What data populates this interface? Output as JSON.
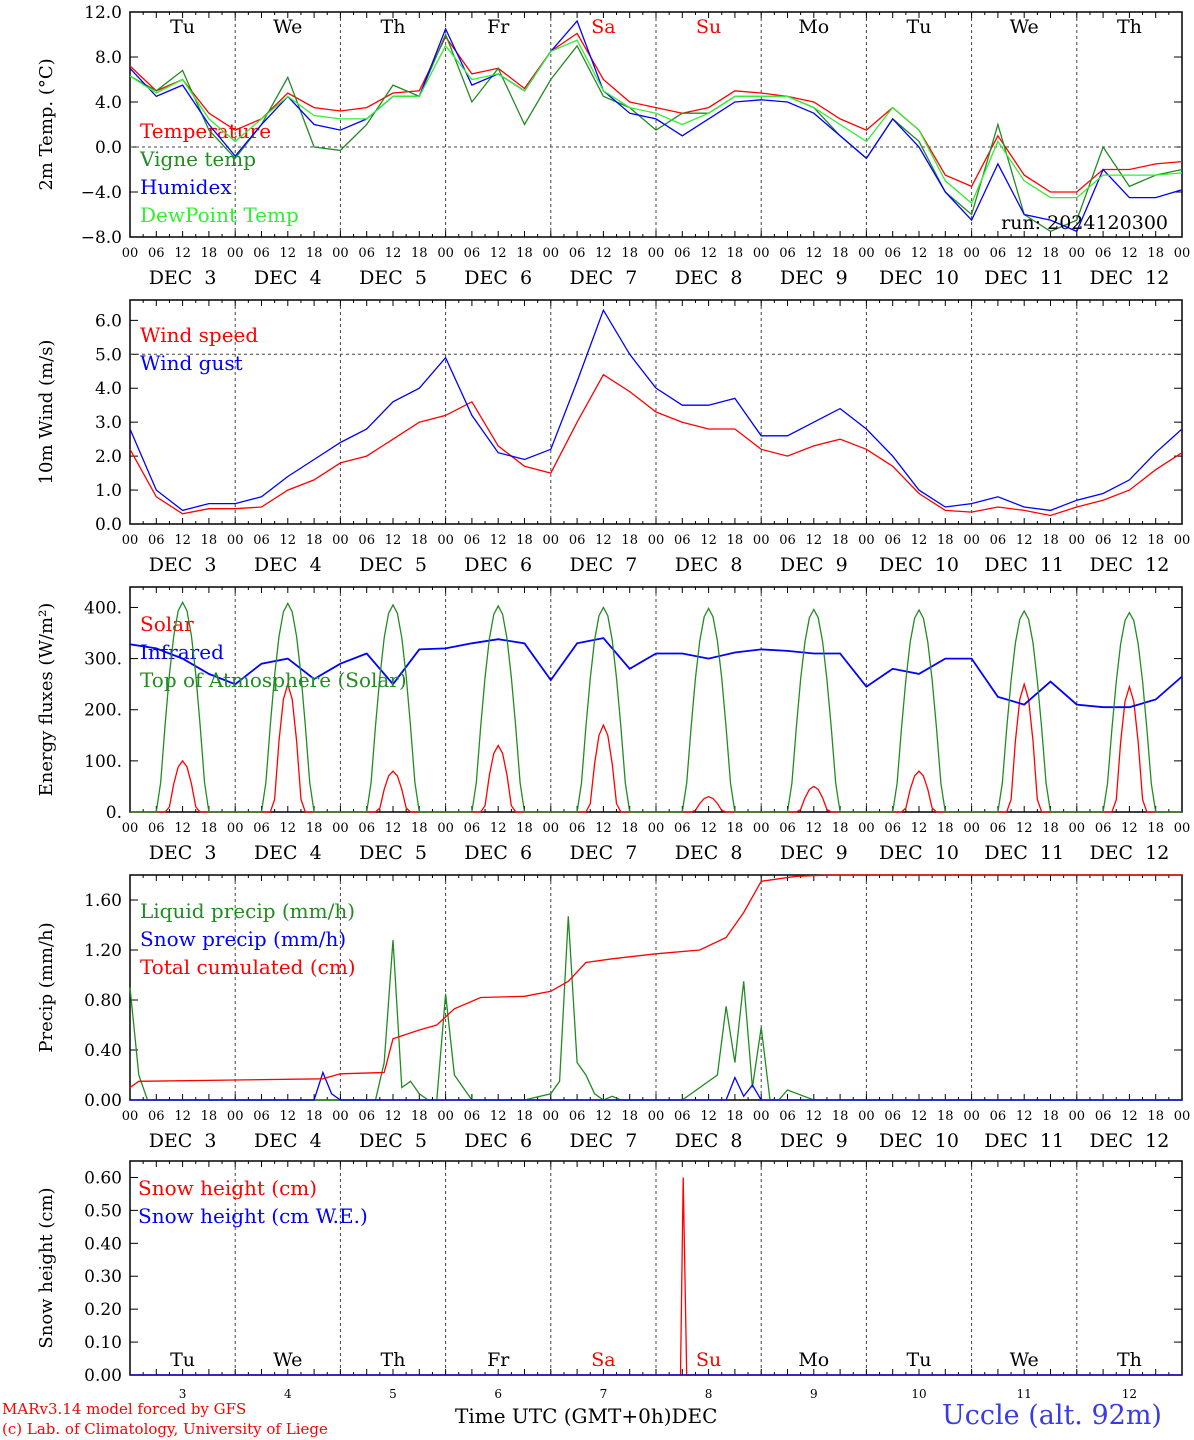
{
  "days": {
    "weekdays": [
      "Tu",
      "We",
      "Th",
      "Fr",
      "Sa",
      "Su",
      "Mo",
      "Tu",
      "We",
      "Th"
    ],
    "weekend_color": "#ff0000",
    "dates": [
      "DEC  3",
      "DEC  4",
      "DEC  5",
      "DEC  6",
      "DEC  7",
      "DEC  8",
      "DEC  9",
      "DEC 10",
      "DEC 11",
      "DEC 12"
    ],
    "day_numbers": [
      "3",
      "4",
      "5",
      "6",
      "7",
      "8",
      "9",
      "10",
      "11",
      "12"
    ],
    "hour_ticks": [
      "00",
      "06",
      "12",
      "18"
    ],
    "final_tick": "00"
  },
  "footer": {
    "model": "MARv3.14 model forced by GFS",
    "copyright": "(c) Lab. of Climatology, University of Liege",
    "time_label": "Time UTC (GMT+0h)",
    "month": "DEC",
    "station": "Uccle (alt. 92m)"
  },
  "chart_data": [
    {
      "type": "line",
      "ylabel": "2m Temp. (°C)",
      "ylim": [
        -8,
        12
      ],
      "yticks": [
        "12.0",
        "8.0",
        "4.0",
        "0.0",
        "−4.0",
        "−8.0"
      ],
      "zero_line": 0,
      "run_label": "run: 2024120300",
      "x_unit": "hours since Dec 3 00 UTC",
      "series": [
        {
          "name": "Temperature",
          "color": "#ff0000",
          "x": [
            0,
            6,
            12,
            18,
            24,
            30,
            36,
            42,
            48,
            54,
            60,
            66,
            72,
            78,
            84,
            90,
            96,
            102,
            108,
            114,
            120,
            126,
            132,
            138,
            144,
            150,
            156,
            162,
            168,
            174,
            180,
            186,
            192,
            198,
            204,
            210,
            216,
            222,
            228,
            234,
            240
          ],
          "y": [
            7.2,
            5.0,
            6.0,
            3.0,
            1.5,
            2.5,
            4.8,
            3.5,
            3.2,
            3.5,
            4.8,
            5.0,
            9.8,
            6.5,
            7.0,
            5.2,
            8.5,
            10.1,
            6.0,
            4.0,
            3.5,
            3.0,
            3.5,
            5.0,
            4.8,
            4.5,
            4.0,
            2.5,
            1.5,
            3.5,
            1.5,
            -2.5,
            -3.5,
            1.0,
            -2.5,
            -4.0,
            -4.0,
            -2.0,
            -2.0,
            -1.5,
            -1.3
          ]
        },
        {
          "name": "Vigne temp",
          "color": "#228b22",
          "x": [
            0,
            6,
            12,
            18,
            24,
            30,
            36,
            42,
            48,
            54,
            60,
            66,
            72,
            78,
            84,
            90,
            96,
            102,
            108,
            114,
            120,
            126,
            132,
            138,
            144,
            150,
            156,
            162,
            168,
            174,
            180,
            186,
            192,
            198,
            204,
            210,
            216,
            222,
            228,
            234,
            240
          ],
          "y": [
            6.3,
            5.0,
            6.8,
            1.5,
            -1.0,
            2.0,
            6.2,
            0.0,
            -0.3,
            2.0,
            5.5,
            4.5,
            10.0,
            4.0,
            7.0,
            2.0,
            6.0,
            9.0,
            4.5,
            3.5,
            1.5,
            3.0,
            3.0,
            4.5,
            4.5,
            4.5,
            3.5,
            1.0,
            -1.0,
            2.5,
            0.5,
            -4.0,
            -6.0,
            2.0,
            -6.0,
            -7.5,
            -6.5,
            0.0,
            -3.5,
            -2.5,
            -2.0
          ]
        },
        {
          "name": "Humidex",
          "color": "#0000ff",
          "x": [
            0,
            6,
            12,
            18,
            24,
            30,
            36,
            42,
            48,
            54,
            60,
            66,
            72,
            78,
            84,
            90,
            96,
            102,
            108,
            114,
            120,
            126,
            132,
            138,
            144,
            150,
            156,
            162,
            168,
            174,
            180,
            186,
            192,
            198,
            204,
            210,
            216,
            222,
            228,
            234,
            240
          ],
          "y": [
            7.0,
            4.5,
            5.5,
            2.0,
            -0.8,
            2.0,
            4.5,
            2.0,
            1.5,
            2.5,
            4.5,
            4.5,
            10.5,
            5.5,
            6.5,
            5.0,
            8.5,
            11.2,
            5.0,
            3.0,
            2.5,
            1.0,
            2.5,
            4.0,
            4.2,
            4.0,
            3.0,
            1.0,
            -1.0,
            2.5,
            0.0,
            -4.0,
            -6.5,
            -1.5,
            -6.0,
            -6.5,
            -7.5,
            -2.0,
            -4.5,
            -4.5,
            -3.8
          ]
        },
        {
          "name": "DewPoint Temp",
          "color": "#33ee33",
          "x": [
            0,
            6,
            12,
            18,
            24,
            30,
            36,
            42,
            48,
            54,
            60,
            66,
            72,
            78,
            84,
            90,
            96,
            102,
            108,
            114,
            120,
            126,
            132,
            138,
            144,
            150,
            156,
            162,
            168,
            174,
            180,
            186,
            192,
            198,
            204,
            210,
            216,
            222,
            228,
            234,
            240
          ],
          "y": [
            6.3,
            4.8,
            6.0,
            2.5,
            0.5,
            2.5,
            4.5,
            2.8,
            2.5,
            2.5,
            4.5,
            4.5,
            9.0,
            6.0,
            6.5,
            5.0,
            8.5,
            9.5,
            5.0,
            3.5,
            3.0,
            2.0,
            3.0,
            4.5,
            4.5,
            4.5,
            3.5,
            2.0,
            0.5,
            3.5,
            1.5,
            -3.0,
            -5.0,
            0.5,
            -3.0,
            -4.5,
            -4.5,
            -2.5,
            -2.5,
            -2.5,
            -2.3
          ]
        }
      ]
    },
    {
      "type": "line",
      "ylabel": "10m Wind (m/s)",
      "ylim": [
        0,
        6.6
      ],
      "yticks": [
        "6.0",
        "5.0",
        "4.0",
        "3.0",
        "2.0",
        "1.0",
        "0.0"
      ],
      "ref_line": 5,
      "x_unit": "hours since Dec 3 00 UTC",
      "series": [
        {
          "name": "Wind speed",
          "color": "#ff0000",
          "x": [
            0,
            6,
            12,
            18,
            24,
            30,
            36,
            42,
            48,
            54,
            60,
            66,
            72,
            78,
            84,
            90,
            96,
            102,
            108,
            114,
            120,
            126,
            132,
            138,
            144,
            150,
            156,
            162,
            168,
            174,
            180,
            186,
            192,
            198,
            204,
            210,
            216,
            222,
            228,
            234,
            240
          ],
          "y": [
            2.2,
            0.8,
            0.3,
            0.45,
            0.45,
            0.5,
            1.0,
            1.3,
            1.8,
            2.0,
            2.5,
            3.0,
            3.2,
            3.6,
            2.3,
            1.7,
            1.5,
            3.0,
            4.4,
            3.9,
            3.3,
            3.0,
            2.8,
            2.8,
            2.2,
            2.0,
            2.3,
            2.5,
            2.2,
            1.7,
            0.9,
            0.4,
            0.35,
            0.5,
            0.4,
            0.25,
            0.5,
            0.7,
            1.0,
            1.6,
            2.1
          ]
        },
        {
          "name": "Wind gust",
          "color": "#0000ff",
          "x": [
            0,
            6,
            12,
            18,
            24,
            30,
            36,
            42,
            48,
            54,
            60,
            66,
            72,
            78,
            84,
            90,
            96,
            102,
            108,
            114,
            120,
            126,
            132,
            138,
            144,
            150,
            156,
            162,
            168,
            174,
            180,
            186,
            192,
            198,
            204,
            210,
            216,
            222,
            228,
            234,
            240
          ],
          "y": [
            2.8,
            1.0,
            0.4,
            0.6,
            0.6,
            0.8,
            1.4,
            1.9,
            2.4,
            2.8,
            3.6,
            4.0,
            4.9,
            3.2,
            2.1,
            1.9,
            2.2,
            4.2,
            6.3,
            5.0,
            4.0,
            3.5,
            3.5,
            3.7,
            2.6,
            2.6,
            3.0,
            3.4,
            2.8,
            2.0,
            1.0,
            0.5,
            0.6,
            0.8,
            0.5,
            0.4,
            0.7,
            0.9,
            1.3,
            2.1,
            2.8
          ]
        }
      ]
    },
    {
      "type": "line",
      "ylabel": "Energy fluxes (W/m²)",
      "ylim": [
        0,
        440
      ],
      "yticks": [
        "400.",
        "300.",
        "200.",
        "100.",
        "0."
      ],
      "x_unit": "hours since Dec 3 00 UTC",
      "series": [
        {
          "name": "Solar",
          "color": "#ff0000",
          "peaks_y": [
            100,
            250,
            80,
            130,
            170,
            30,
            50,
            80,
            250,
            245
          ]
        },
        {
          "name": "Infrared",
          "color": "#0000ff",
          "x": [
            0,
            6,
            12,
            18,
            24,
            30,
            36,
            42,
            48,
            54,
            60,
            66,
            72,
            78,
            84,
            90,
            96,
            102,
            108,
            114,
            120,
            126,
            132,
            138,
            144,
            150,
            156,
            162,
            168,
            174,
            180,
            186,
            192,
            198,
            204,
            210,
            216,
            222,
            228,
            234,
            240
          ],
          "y": [
            328,
            320,
            300,
            270,
            250,
            290,
            300,
            260,
            290,
            310,
            250,
            318,
            320,
            330,
            338,
            330,
            258,
            330,
            340,
            280,
            310,
            310,
            300,
            312,
            318,
            315,
            310,
            310,
            245,
            280,
            270,
            300,
            300,
            225,
            210,
            255,
            210,
            205,
            205,
            220,
            265
          ]
        },
        {
          "name": "Top of Atmosphere (Solar)",
          "color": "#228b22",
          "peaks_y": [
            410,
            408,
            405,
            403,
            400,
            398,
            396,
            395,
            393,
            390
          ]
        }
      ]
    },
    {
      "type": "line",
      "ylabel": "Precip (mm/h)",
      "ylim": [
        0,
        1.8
      ],
      "yticks": [
        "1.60",
        "1.20",
        "0.80",
        "0.40",
        "0.00"
      ],
      "x_unit": "hours since Dec 3 00 UTC",
      "series": [
        {
          "name": "Liquid precip (mm/h)",
          "color": "#228b22",
          "x": [
            0,
            2,
            4,
            8,
            56,
            58,
            60,
            62,
            64,
            66,
            68,
            70,
            72,
            74,
            76,
            78,
            80,
            90,
            96,
            98,
            100,
            102,
            104,
            106,
            108,
            110,
            112,
            114,
            120,
            126,
            134,
            136,
            138,
            140,
            142,
            144,
            146,
            148,
            150,
            156,
            160,
            166,
            240
          ],
          "y": [
            0.9,
            0.2,
            0.0,
            0.0,
            0.0,
            0.3,
            1.28,
            0.1,
            0.15,
            0.05,
            0.0,
            0.0,
            0.85,
            0.2,
            0.1,
            0.0,
            0.0,
            0.0,
            0.05,
            0.15,
            1.47,
            0.3,
            0.2,
            0.05,
            0.0,
            0.03,
            0.0,
            0.0,
            0.0,
            0.0,
            0.2,
            0.75,
            0.3,
            0.95,
            0.1,
            0.58,
            0.0,
            0.0,
            0.08,
            0.0,
            0.0,
            0.0,
            0.0
          ]
        },
        {
          "name": "Snow precip (mm/h)",
          "color": "#0000ff",
          "x": [
            0,
            42,
            44,
            46,
            48,
            136,
            138,
            140,
            142,
            144,
            146,
            240
          ],
          "y": [
            0.0,
            0.0,
            0.22,
            0.05,
            0.0,
            0.0,
            0.18,
            0.03,
            0.12,
            0.0,
            0.0,
            0.0
          ]
        },
        {
          "name": "Total cumulated (cm)",
          "color": "#ff0000",
          "x": [
            0,
            2,
            24,
            44,
            48,
            58,
            60,
            66,
            70,
            74,
            80,
            90,
            96,
            100,
            104,
            110,
            120,
            130,
            136,
            140,
            144,
            148,
            152,
            160,
            240
          ],
          "y": [
            0.1,
            0.15,
            0.16,
            0.17,
            0.21,
            0.22,
            0.49,
            0.56,
            0.6,
            0.73,
            0.82,
            0.83,
            0.87,
            0.95,
            1.1,
            1.13,
            1.17,
            1.2,
            1.3,
            1.5,
            1.75,
            1.77,
            1.79,
            1.8,
            1.8
          ]
        }
      ]
    },
    {
      "type": "line",
      "ylabel": "Snow height (cm)",
      "ylim": [
        0,
        0.65
      ],
      "yticks": [
        "0.60",
        "0.50",
        "0.40",
        "0.30",
        "0.20",
        "0.10",
        "0.00"
      ],
      "x_unit": "hours since Dec 3 00 UTC",
      "series": [
        {
          "name": "Snow height (cm)",
          "color": "#ff0000",
          "x": [
            0,
            125.6,
            126.2,
            127,
            240
          ],
          "y": [
            0,
            0,
            0.6,
            0,
            0
          ]
        },
        {
          "name": "Snow height (cm W.E.)",
          "color": "#0000ff",
          "x": [
            0,
            240
          ],
          "y": [
            0,
            0
          ]
        }
      ]
    }
  ]
}
